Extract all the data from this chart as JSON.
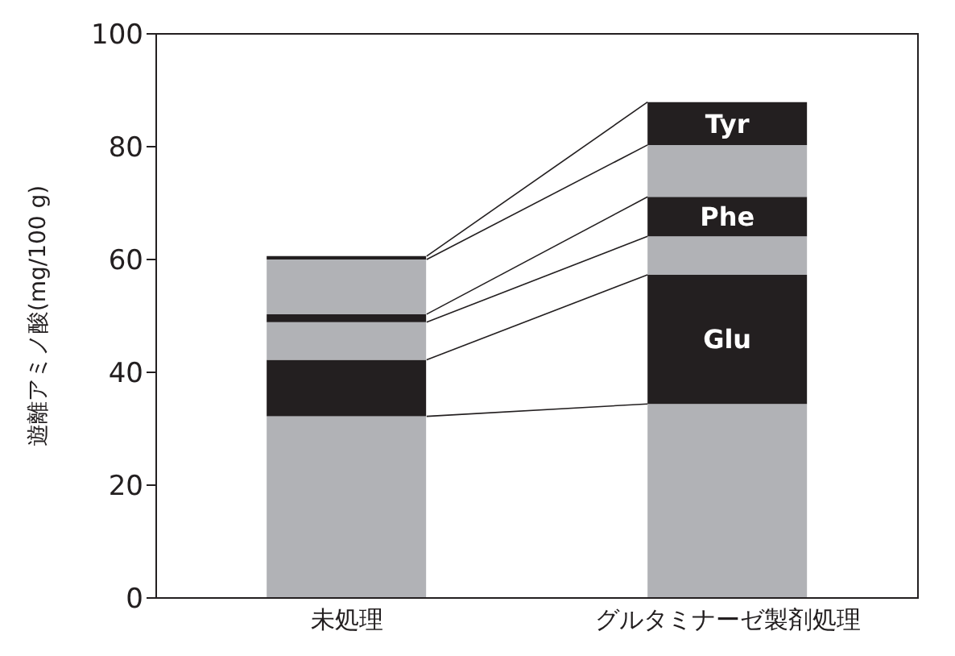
{
  "chart_data": {
    "type": "bar",
    "stacked": true,
    "ylabel": "遊離アミノ酸(mg/100 g)",
    "categories": [
      "未処理",
      "グルタミナーゼ製剤処理"
    ],
    "series": [
      {
        "color": "#b1b2b6",
        "values": [
          32.2,
          34.4
        ]
      },
      {
        "name": "Glu",
        "color": "#231f20",
        "values": [
          10,
          22.9
        ]
      },
      {
        "color": "#b1b2b6",
        "values": [
          6.7,
          6.8
        ]
      },
      {
        "name": "Phe",
        "color": "#231f20",
        "values": [
          1.4,
          7
        ]
      },
      {
        "color": "#b1b2b6",
        "values": [
          9.7,
          9.2
        ]
      },
      {
        "name": "Tyr",
        "color": "#231f20",
        "values": [
          0.6,
          7.6
        ]
      }
    ],
    "ylim": [
      0,
      100
    ],
    "yticks": [
      0,
      20,
      40,
      60,
      80,
      100
    ],
    "grid": false,
    "legend": false
  }
}
